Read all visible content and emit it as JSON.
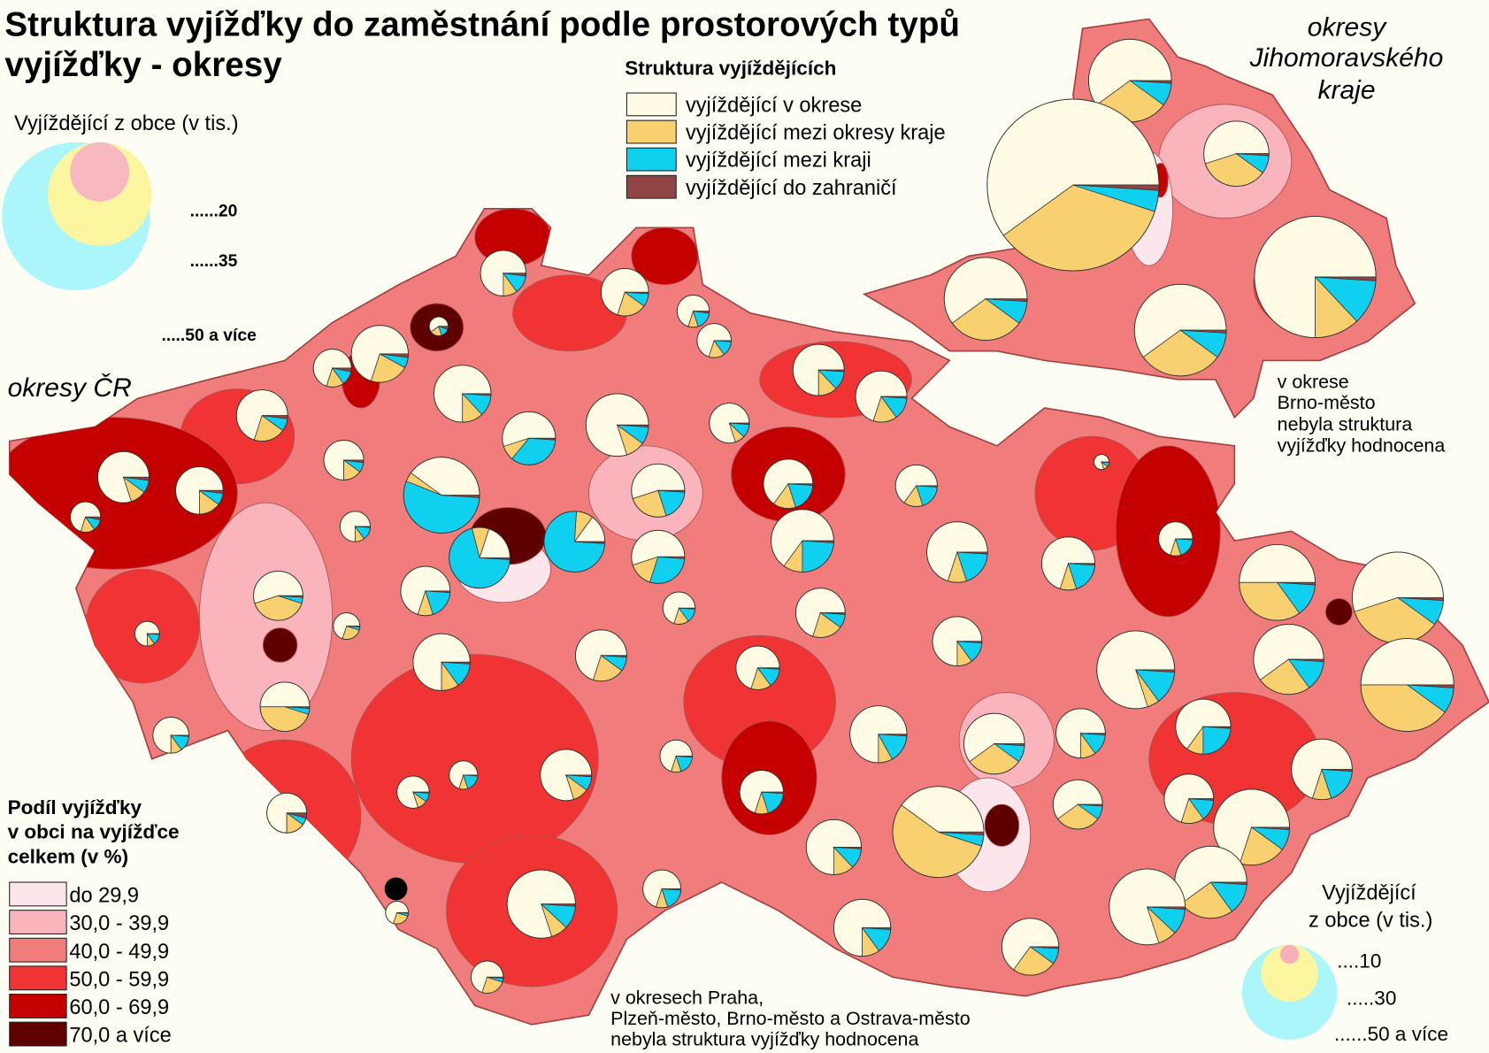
{
  "title": [
    "Struktura vyjížďky do zaměstnání podle prostorových typů",
    "vyjížďky - okresy"
  ],
  "map_label": "okresy ČR",
  "inset_label": [
    "okresy",
    "Jihomoravského",
    "kraje"
  ],
  "note_brno": [
    "v okrese",
    "Brno-město",
    "nebyla struktura",
    "vyjížďky hodnocena"
  ],
  "note_cr": [
    "v okresech Praha,",
    "Plzeň-město, Brno-město a Ostrava-město",
    "nebyla struktura vyjížďky hodnocena"
  ],
  "structure_legend": {
    "title": "Struktura vyjíždějících",
    "items": [
      {
        "label": "vyjíždějící v okrese",
        "color": "#fffbe4"
      },
      {
        "label": "vyjíždějící mezi okresy kraje",
        "color": "#f8d070"
      },
      {
        "label": "vyjíždějící mezi kraji",
        "color": "#10d0f0"
      },
      {
        "label": "vyjíždějící do zahraničí",
        "color": "#904444"
      }
    ]
  },
  "share_legend": {
    "title": [
      "Podíl vyjížďky",
      "v obci na vyjížďce",
      "celkem (v %)"
    ],
    "classes": [
      {
        "label": "do 29,9",
        "color": "#fce6ec"
      },
      {
        "label": "30,0 - 39,9",
        "color": "#f9b4bc"
      },
      {
        "label": "40,0 - 49,9",
        "color": "#f07c7c"
      },
      {
        "label": "50,0 - 59,9",
        "color": "#f03434"
      },
      {
        "label": "60,0 - 69,9",
        "color": "#c40000"
      },
      {
        "label": "70,0 a více",
        "color": "#5e0000"
      }
    ]
  },
  "size_legend_inset": {
    "title": "Vyjíždějící z obce (v tis.)",
    "sizes": [
      {
        "value": 20,
        "label": "......20",
        "color": "#f8b8c0"
      },
      {
        "value": 35,
        "label": "......35",
        "color": "#fcf6a0"
      },
      {
        "value": 50,
        "label": ".....50 a více",
        "color": "#aaf6fa"
      }
    ]
  },
  "size_legend_map": {
    "title": [
      "Vyjíždějící",
      "z obce (v tis.)"
    ],
    "sizes": [
      {
        "value": 10,
        "label": "....10",
        "color": "#f8b0b8"
      },
      {
        "value": 30,
        "label": ".....30",
        "color": "#fcf6a0"
      },
      {
        "value": 50,
        "label": "......50 a více",
        "color": "#aaf6fa"
      }
    ]
  },
  "pies": [
    {
      "size": 24,
      "values": [
        75,
        10,
        13,
        2
      ]
    },
    {
      "size": 30,
      "values": [
        70,
        22,
        6,
        2
      ]
    },
    {
      "size": 20,
      "values": [
        70,
        15,
        12,
        3
      ]
    },
    {
      "size": 10,
      "values": [
        60,
        20,
        15,
        5
      ]
    },
    {
      "size": 27,
      "values": [
        70,
        20,
        8,
        2
      ]
    },
    {
      "size": 27,
      "values": [
        80,
        10,
        8,
        2
      ]
    },
    {
      "size": 25,
      "values": [
        75,
        15,
        8,
        2
      ]
    },
    {
      "size": 16,
      "values": [
        70,
        15,
        12,
        3
      ]
    },
    {
      "size": 21,
      "values": [
        75,
        15,
        8,
        2
      ]
    },
    {
      "size": 30,
      "values": [
        75,
        12,
        12,
        1
      ]
    },
    {
      "size": 40,
      "values": [
        40,
        4,
        55,
        1
      ]
    },
    {
      "size": 32,
      "values": [
        20,
        9,
        70,
        1
      ]
    },
    {
      "size": 32,
      "values": [
        15,
        9,
        75,
        1
      ]
    },
    {
      "size": 28,
      "values": [
        55,
        9,
        35,
        1
      ]
    },
    {
      "size": 25,
      "values": [
        70,
        20,
        9,
        1
      ]
    },
    {
      "size": 17,
      "values": [
        70,
        10,
        18,
        2
      ]
    },
    {
      "size": 18,
      "values": [
        70,
        15,
        14,
        1
      ]
    },
    {
      "size": 33,
      "values": [
        80,
        10,
        9,
        1
      ]
    },
    {
      "size": 21,
      "values": [
        80,
        8,
        11,
        1
      ]
    },
    {
      "size": 27,
      "values": [
        75,
        12,
        12,
        1
      ]
    },
    {
      "size": 27,
      "values": [
        70,
        15,
        14,
        1
      ]
    },
    {
      "size": 28,
      "values": [
        55,
        25,
        19,
        1
      ]
    },
    {
      "size": 28,
      "values": [
        55,
        15,
        29,
        1
      ]
    },
    {
      "size": 26,
      "values": [
        65,
        15,
        19,
        1
      ]
    },
    {
      "size": 33,
      "values": [
        65,
        10,
        24,
        1
      ]
    },
    {
      "size": 22,
      "values": [
        65,
        15,
        19,
        1
      ]
    },
    {
      "size": 8,
      "values": [
        80,
        10,
        9,
        1
      ]
    },
    {
      "size": 32,
      "values": [
        70,
        10,
        19,
        1
      ]
    },
    {
      "size": 28,
      "values": [
        70,
        10,
        19,
        1
      ]
    },
    {
      "size": 18,
      "values": [
        70,
        10,
        19,
        1
      ]
    },
    {
      "size": 40,
      "values": [
        50,
        35,
        14,
        1
      ]
    },
    {
      "size": 48,
      "values": [
        55,
        35,
        9,
        1
      ]
    },
    {
      "size": 37,
      "values": [
        60,
        25,
        14,
        1
      ]
    },
    {
      "size": 49,
      "values": [
        50,
        40,
        9,
        1
      ]
    },
    {
      "size": 41,
      "values": [
        80,
        5,
        14,
        1
      ]
    },
    {
      "size": 29,
      "values": [
        65,
        10,
        24,
        1
      ]
    },
    {
      "size": 32,
      "values": [
        70,
        10,
        19,
        1
      ]
    },
    {
      "size": 26,
      "values": [
        75,
        10,
        14,
        1
      ]
    },
    {
      "size": 32,
      "values": [
        60,
        30,
        9,
        1
      ]
    },
    {
      "size": 30,
      "values": [
        75,
        8,
        16,
        1
      ]
    },
    {
      "size": 26,
      "values": [
        60,
        30,
        9,
        1
      ]
    },
    {
      "size": 26,
      "values": [
        70,
        15,
        14,
        1
      ]
    },
    {
      "size": 40,
      "values": [
        70,
        20,
        9,
        1
      ]
    },
    {
      "size": 38,
      "values": [
        60,
        25,
        14,
        1
      ]
    },
    {
      "size": 40,
      "values": [
        80,
        8,
        11,
        1
      ]
    },
    {
      "size": 30,
      "values": [
        65,
        25,
        9,
        1
      ]
    },
    {
      "size": 48,
      "values": [
        40,
        55,
        4,
        1
      ]
    },
    {
      "size": 29,
      "values": [
        75,
        12,
        12,
        1
      ]
    },
    {
      "size": 30,
      "values": [
        75,
        10,
        14,
        1
      ]
    },
    {
      "size": 26,
      "values": [
        75,
        10,
        14,
        1
      ]
    },
    {
      "size": 26,
      "values": [
        70,
        20,
        9,
        1
      ]
    },
    {
      "size": 17,
      "values": [
        70,
        15,
        14,
        1
      ]
    },
    {
      "size": 27,
      "values": [
        70,
        20,
        9,
        1
      ]
    },
    {
      "size": 30,
      "values": [
        75,
        10,
        14,
        1
      ]
    },
    {
      "size": 26,
      "values": [
        70,
        10,
        19,
        1
      ]
    },
    {
      "size": 14,
      "values": [
        70,
        25,
        4,
        1
      ]
    },
    {
      "size": 26,
      "values": [
        55,
        40,
        4,
        1
      ]
    },
    {
      "size": 13,
      "values": [
        75,
        10,
        14,
        1
      ]
    },
    {
      "size": 26,
      "values": [
        50,
        45,
        4,
        1
      ]
    },
    {
      "size": 19,
      "values": [
        75,
        10,
        14,
        1
      ]
    },
    {
      "size": 21,
      "values": [
        75,
        15,
        6,
        4
      ]
    },
    {
      "size": 17,
      "values": [
        80,
        10,
        9,
        1
      ]
    },
    {
      "size": 15,
      "values": [
        70,
        10,
        19,
        1
      ]
    },
    {
      "size": 27,
      "values": [
        80,
        10,
        9,
        1
      ]
    },
    {
      "size": 23,
      "values": [
        70,
        15,
        14,
        1
      ]
    },
    {
      "size": 17,
      "values": [
        70,
        10,
        19,
        1
      ]
    },
    {
      "size": 23,
      "values": [
        70,
        10,
        19,
        1
      ]
    },
    {
      "size": 36,
      "values": [
        80,
        8,
        11,
        1
      ]
    },
    {
      "size": 20,
      "values": [
        70,
        10,
        19,
        1
      ]
    },
    {
      "size": 17,
      "values": [
        70,
        25,
        4,
        1
      ]
    },
    {
      "size": 12,
      "values": [
        70,
        25,
        4,
        1
      ]
    },
    {
      "size": 16,
      "values": [
        75,
        10,
        14,
        1
      ]
    }
  ],
  "inset_pies": [
    {
      "size": 28,
      "values": [
        60,
        30,
        9,
        1
      ]
    },
    {
      "size": 22,
      "values": [
        55,
        35,
        9,
        1
      ]
    },
    {
      "size": 58,
      "values": [
        60,
        35,
        4,
        1
      ]
    },
    {
      "size": 41,
      "values": [
        75,
        12,
        12,
        1
      ]
    },
    {
      "size": 31,
      "values": [
        60,
        30,
        9,
        1
      ]
    },
    {
      "size": 28,
      "values": [
        60,
        30,
        9,
        1
      ]
    }
  ]
}
